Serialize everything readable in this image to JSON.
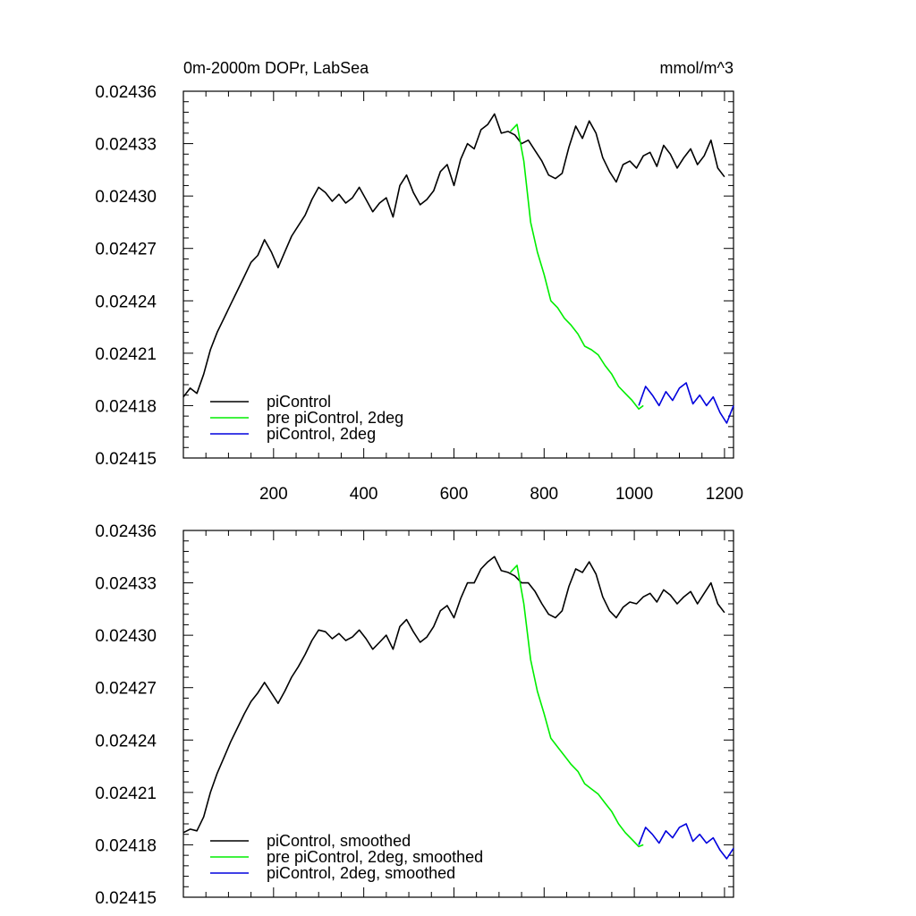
{
  "chart_data": [
    {
      "type": "line",
      "title": "0m-2000m DOPr, LabSea",
      "units": "mmol/m^3",
      "xlabel": "",
      "ylabel": "",
      "xlim": [
        0,
        1220
      ],
      "ylim": [
        0.02415,
        0.02436
      ],
      "x_ticks": [
        200,
        400,
        600,
        800,
        1000,
        1200
      ],
      "x_tick_labels": [
        "200",
        "400",
        "600",
        "800",
        "1000",
        "1200"
      ],
      "y_ticks": [
        0.02415,
        0.02418,
        0.02421,
        0.02424,
        0.02427,
        0.0243,
        0.02433,
        0.02436
      ],
      "y_tick_labels": [
        "0.02415",
        "0.02418",
        "0.02421",
        "0.02424",
        "0.02427",
        "0.02430",
        "0.02433",
        "0.02436"
      ],
      "legend_position": "bottom-left",
      "series": [
        {
          "name": "piControl",
          "color": "#000000",
          "x": [
            0,
            15,
            30,
            45,
            60,
            75,
            90,
            105,
            120,
            135,
            150,
            165,
            180,
            195,
            210,
            225,
            240,
            255,
            270,
            285,
            300,
            315,
            330,
            345,
            360,
            375,
            390,
            405,
            420,
            435,
            450,
            465,
            480,
            495,
            510,
            525,
            540,
            555,
            570,
            585,
            600,
            615,
            630,
            645,
            660,
            675,
            690,
            705,
            720,
            735,
            750,
            765,
            780,
            795,
            810,
            825,
            840,
            855,
            870,
            885,
            900,
            915,
            930,
            945,
            960,
            975,
            990,
            1005,
            1020,
            1035,
            1050,
            1065,
            1080,
            1095,
            1110,
            1125,
            1140,
            1155,
            1170,
            1185,
            1200
          ],
          "y": [
            0.024185,
            0.02419,
            0.024187,
            0.024198,
            0.024212,
            0.024222,
            0.02423,
            0.024238,
            0.024246,
            0.024254,
            0.024262,
            0.024266,
            0.024275,
            0.024268,
            0.024259,
            0.024268,
            0.024277,
            0.024283,
            0.024289,
            0.024298,
            0.024305,
            0.024302,
            0.024297,
            0.024301,
            0.024296,
            0.024299,
            0.024305,
            0.024298,
            0.024291,
            0.024296,
            0.024299,
            0.024288,
            0.024306,
            0.024312,
            0.024302,
            0.024295,
            0.024298,
            0.024303,
            0.024314,
            0.024318,
            0.024306,
            0.024321,
            0.02433,
            0.024327,
            0.024338,
            0.024341,
            0.024347,
            0.024336,
            0.024337,
            0.024335,
            0.02433,
            0.024332,
            0.024326,
            0.02432,
            0.024312,
            0.02431,
            0.024313,
            0.024328,
            0.02434,
            0.024333,
            0.024343,
            0.024336,
            0.024322,
            0.024314,
            0.024308,
            0.024318,
            0.02432,
            0.024316,
            0.024323,
            0.024325,
            0.024317,
            0.024329,
            0.024324,
            0.024316,
            0.024322,
            0.024327,
            0.024318,
            0.024323,
            0.024332,
            0.024316,
            0.024311
          ]
        },
        {
          "name": "pre piControl, 2deg",
          "color": "#00ee00",
          "x": [
            725,
            740,
            755,
            770,
            785,
            800,
            815,
            830,
            845,
            860,
            875,
            890,
            905,
            920,
            935,
            950,
            965,
            980,
            995,
            1010,
            1020
          ],
          "y": [
            0.024337,
            0.024341,
            0.02432,
            0.024285,
            0.024268,
            0.024255,
            0.02424,
            0.024236,
            0.02423,
            0.024226,
            0.024221,
            0.024214,
            0.024212,
            0.024209,
            0.024203,
            0.024198,
            0.024191,
            0.024187,
            0.024183,
            0.024178,
            0.02418
          ]
        },
        {
          "name": "piControl, 2deg",
          "color": "#0000dd",
          "x": [
            1010,
            1025,
            1040,
            1055,
            1070,
            1085,
            1100,
            1115,
            1130,
            1145,
            1160,
            1175,
            1190,
            1205,
            1220
          ],
          "y": [
            0.02418,
            0.024191,
            0.024186,
            0.02418,
            0.024188,
            0.024183,
            0.02419,
            0.024193,
            0.024181,
            0.024186,
            0.02418,
            0.024185,
            0.024176,
            0.02417,
            0.02418
          ]
        }
      ]
    },
    {
      "type": "line",
      "title": "",
      "xlabel": "",
      "ylabel": "",
      "xlim": [
        0,
        1220
      ],
      "ylim": [
        0.02415,
        0.02436
      ],
      "x_ticks": [
        200,
        400,
        600,
        800,
        1000,
        1200
      ],
      "y_ticks": [
        0.02415,
        0.02418,
        0.02421,
        0.02424,
        0.02427,
        0.0243,
        0.02433,
        0.02436
      ],
      "y_tick_labels": [
        "0.02415",
        "0.02418",
        "0.02421",
        "0.02424",
        "0.02427",
        "0.02430",
        "0.02433",
        "0.02436"
      ],
      "legend_position": "bottom-left",
      "series": [
        {
          "name": "piControl, smoothed",
          "color": "#000000",
          "x": [
            0,
            15,
            30,
            45,
            60,
            75,
            90,
            105,
            120,
            135,
            150,
            165,
            180,
            195,
            210,
            225,
            240,
            255,
            270,
            285,
            300,
            315,
            330,
            345,
            360,
            375,
            390,
            405,
            420,
            435,
            450,
            465,
            480,
            495,
            510,
            525,
            540,
            555,
            570,
            585,
            600,
            615,
            630,
            645,
            660,
            675,
            690,
            705,
            720,
            735,
            750,
            765,
            780,
            795,
            810,
            825,
            840,
            855,
            870,
            885,
            900,
            915,
            930,
            945,
            960,
            975,
            990,
            1005,
            1020,
            1035,
            1050,
            1065,
            1080,
            1095,
            1110,
            1125,
            1140,
            1155,
            1170,
            1185,
            1200
          ],
          "y": [
            0.024187,
            0.024189,
            0.024188,
            0.024196,
            0.02421,
            0.024221,
            0.02423,
            0.024239,
            0.024247,
            0.024255,
            0.024262,
            0.024267,
            0.024273,
            0.024267,
            0.024261,
            0.024268,
            0.024276,
            0.024282,
            0.024289,
            0.024297,
            0.024303,
            0.024302,
            0.024298,
            0.024301,
            0.024297,
            0.024299,
            0.024303,
            0.024298,
            0.024292,
            0.024296,
            0.0243,
            0.024292,
            0.024305,
            0.024309,
            0.024302,
            0.024296,
            0.024299,
            0.024305,
            0.024314,
            0.024317,
            0.02431,
            0.024321,
            0.02433,
            0.02433,
            0.024338,
            0.024342,
            0.024345,
            0.024337,
            0.024336,
            0.024334,
            0.02433,
            0.02433,
            0.024325,
            0.024318,
            0.024312,
            0.02431,
            0.024314,
            0.024328,
            0.024338,
            0.024336,
            0.024342,
            0.024335,
            0.024322,
            0.024314,
            0.02431,
            0.024316,
            0.024319,
            0.024318,
            0.024322,
            0.024324,
            0.024319,
            0.024326,
            0.024323,
            0.024318,
            0.024322,
            0.024325,
            0.024318,
            0.024324,
            0.02433,
            0.024318,
            0.024313
          ]
        },
        {
          "name": "pre piControl, 2deg, smoothed",
          "color": "#00ee00",
          "x": [
            725,
            740,
            755,
            770,
            785,
            800,
            815,
            830,
            845,
            860,
            875,
            890,
            905,
            920,
            935,
            950,
            965,
            980,
            995,
            1010,
            1020
          ],
          "y": [
            0.024336,
            0.02434,
            0.024318,
            0.024286,
            0.024268,
            0.024255,
            0.024241,
            0.024236,
            0.024231,
            0.024226,
            0.024222,
            0.024215,
            0.024212,
            0.024209,
            0.024204,
            0.024199,
            0.024192,
            0.024187,
            0.024183,
            0.024179,
            0.02418
          ]
        },
        {
          "name": "piControl, 2deg, smoothed",
          "color": "#0000dd",
          "x": [
            1010,
            1025,
            1040,
            1055,
            1070,
            1085,
            1100,
            1115,
            1130,
            1145,
            1160,
            1175,
            1190,
            1205,
            1220
          ],
          "y": [
            0.02418,
            0.02419,
            0.024186,
            0.024181,
            0.024188,
            0.024184,
            0.02419,
            0.024192,
            0.024182,
            0.024186,
            0.024181,
            0.024184,
            0.024177,
            0.024172,
            0.024178
          ]
        }
      ]
    }
  ]
}
